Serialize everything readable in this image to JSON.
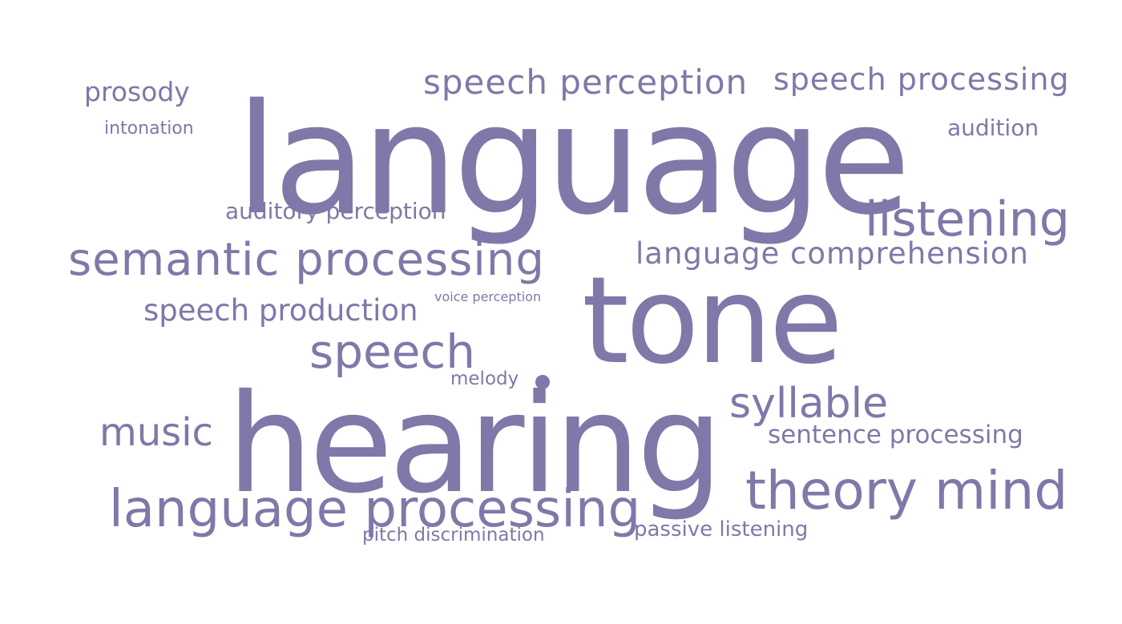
{
  "word_cloud": {
    "color": "#7f78a8",
    "words": {
      "language": "language",
      "tone": "tone",
      "hearing": "hearing",
      "speech_perception": "speech perception",
      "speech_processing": "speech processing",
      "prosody": "prosody",
      "intonation": "intonation",
      "audition": "audition",
      "auditory_perception": "auditory perception",
      "listening": "listening",
      "semantic_processing": "semantic processing",
      "language_comprehension": "language comprehension",
      "speech_production": "speech production",
      "voice_perception": "voice perception",
      "speech": "speech",
      "melody": "melody",
      "syllable": "syllable",
      "music": "music",
      "sentence_processing": "sentence processing",
      "theory_mind": "theory mind",
      "language_processing": "language processing",
      "passive_listening": "passive listening",
      "pitch_discrimination": "pitch discrimination"
    }
  }
}
